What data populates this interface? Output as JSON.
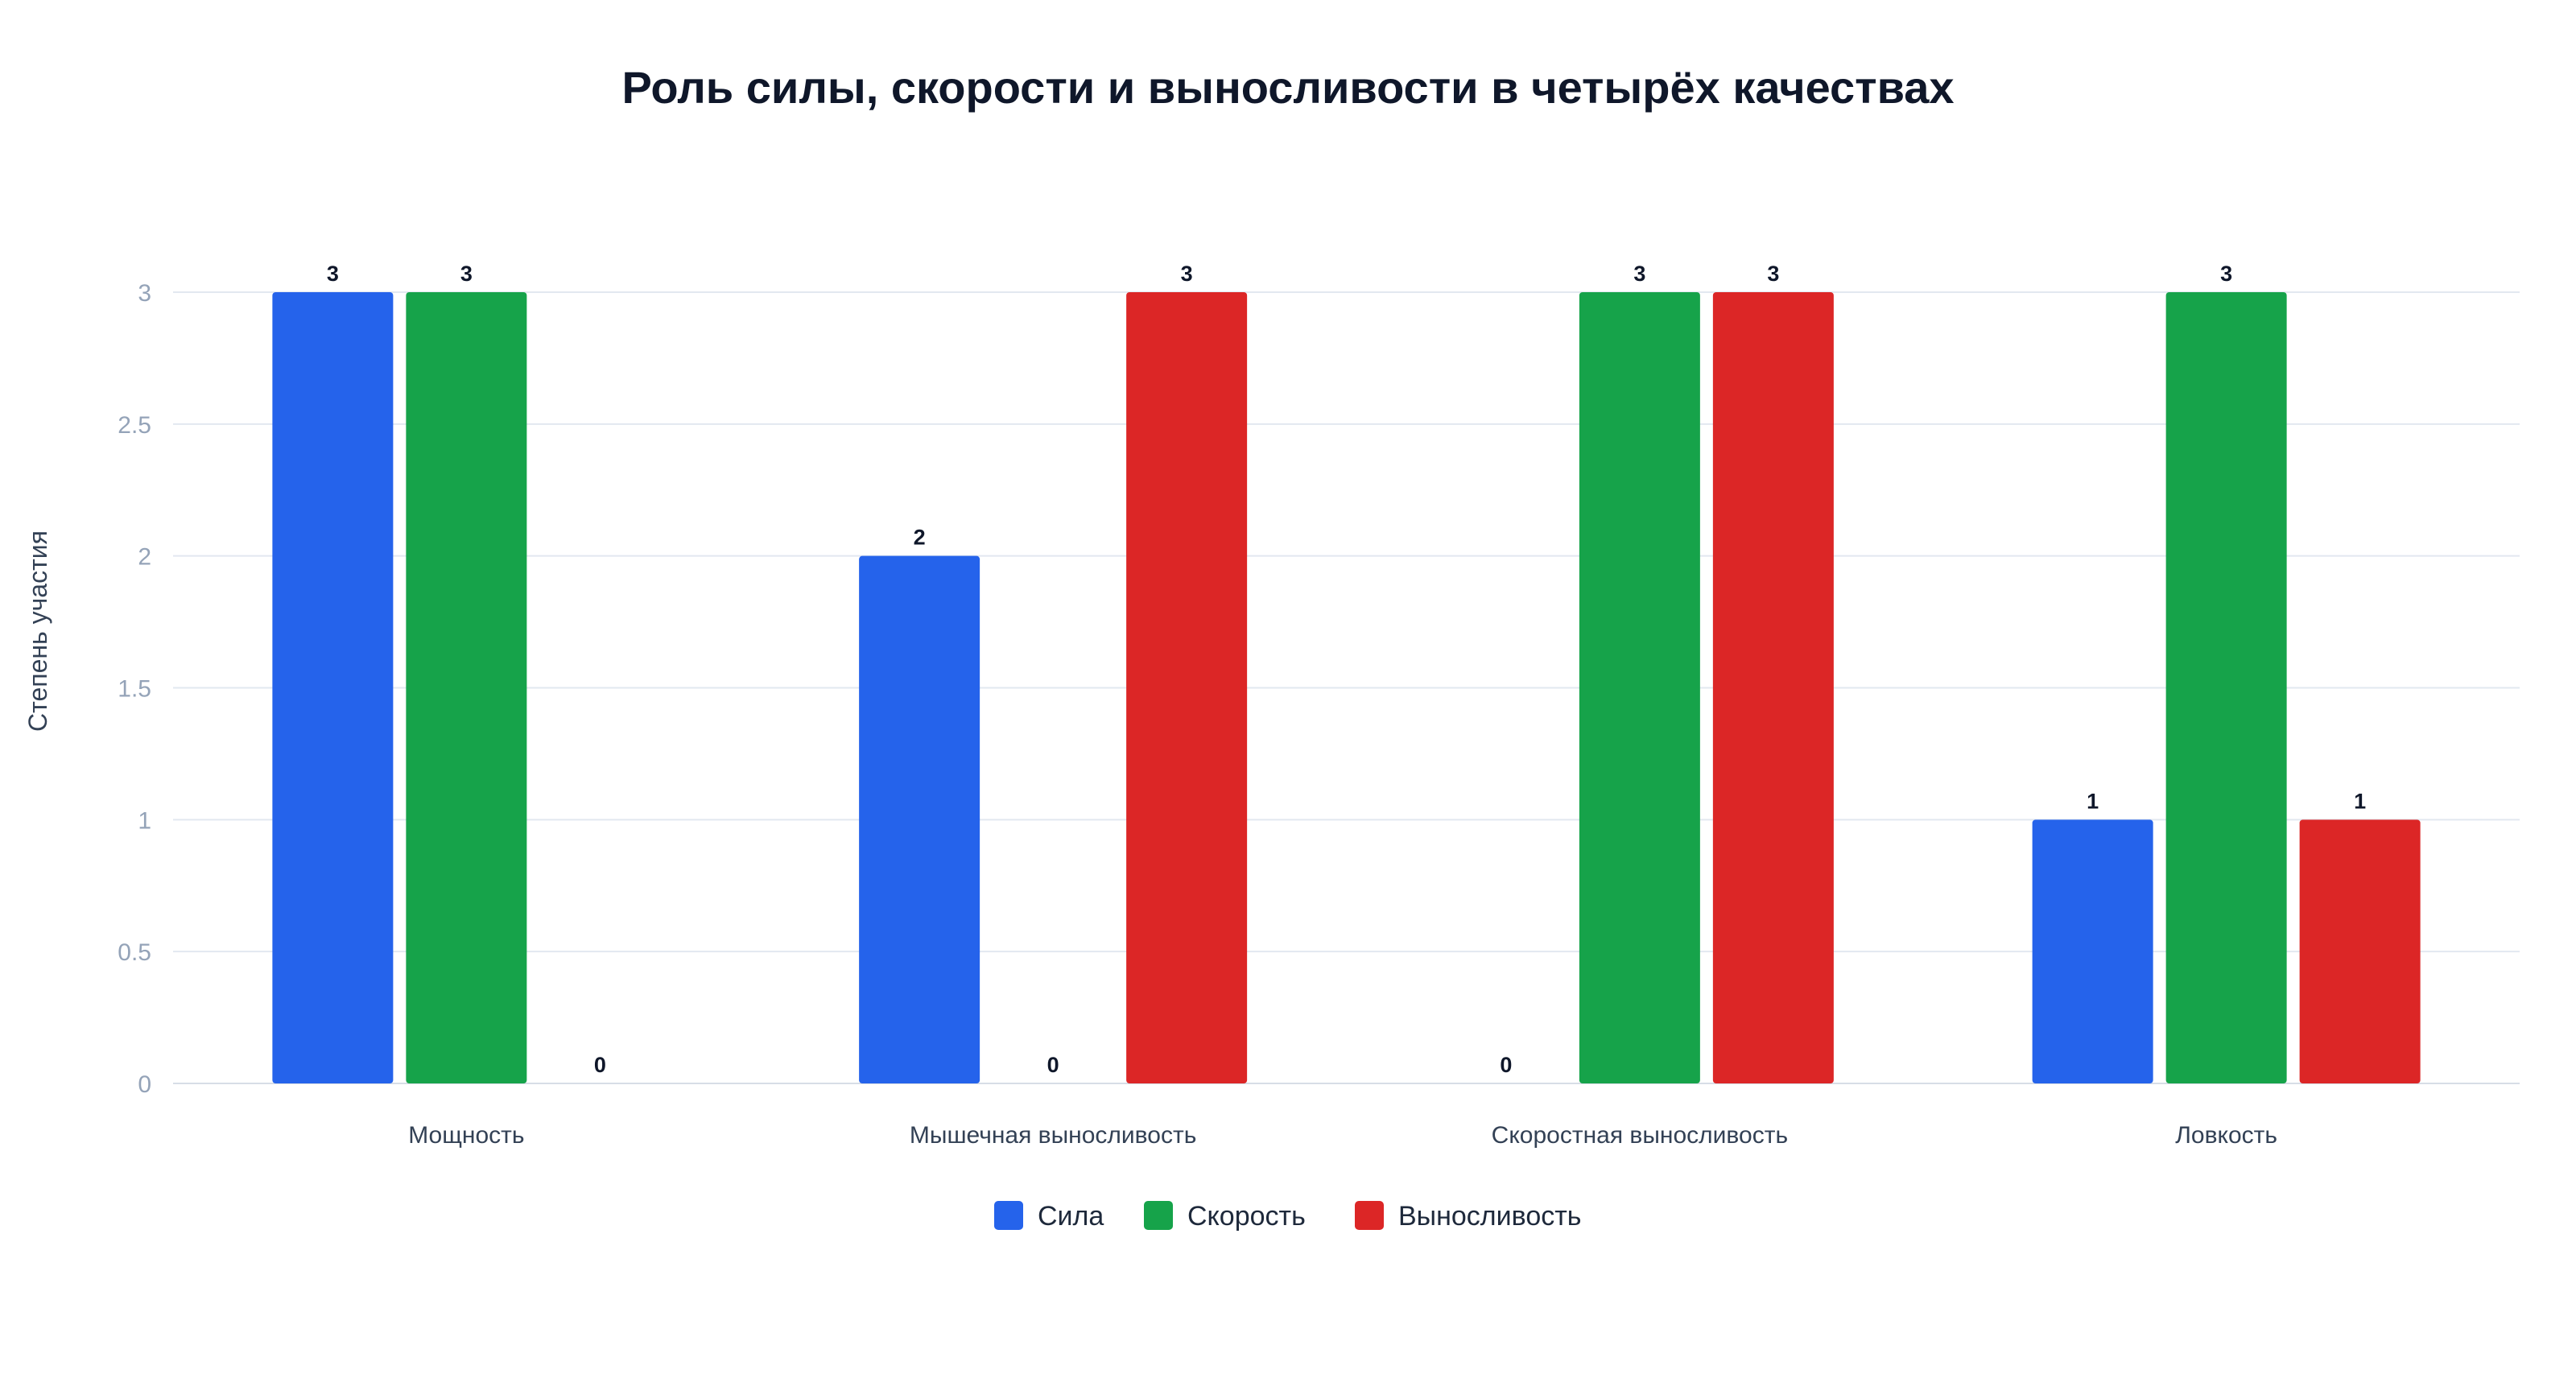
{
  "chart_data": {
    "type": "bar",
    "title": "Роль силы, скорости и выносливости в четырёх качествах",
    "xlabel": "",
    "ylabel": "Степень участия",
    "ylim": [
      0,
      3
    ],
    "yticks": [
      "0",
      "0.5",
      "1",
      "1.5",
      "2",
      "2.5",
      "3"
    ],
    "grid": true,
    "legend_position": "bottom-center",
    "categories": [
      "Мощность",
      "Мышечная выносливость",
      "Скоростная выносливость",
      "Ловкость"
    ],
    "series": [
      {
        "name": "Сила",
        "color": "#2563eb",
        "values": [
          3,
          2,
          0,
          1
        ]
      },
      {
        "name": "Скорость",
        "color": "#16a34a",
        "values": [
          3,
          0,
          3,
          3
        ]
      },
      {
        "name": "Выносливость",
        "color": "#dc2626",
        "values": [
          0,
          3,
          3,
          1
        ]
      }
    ]
  }
}
